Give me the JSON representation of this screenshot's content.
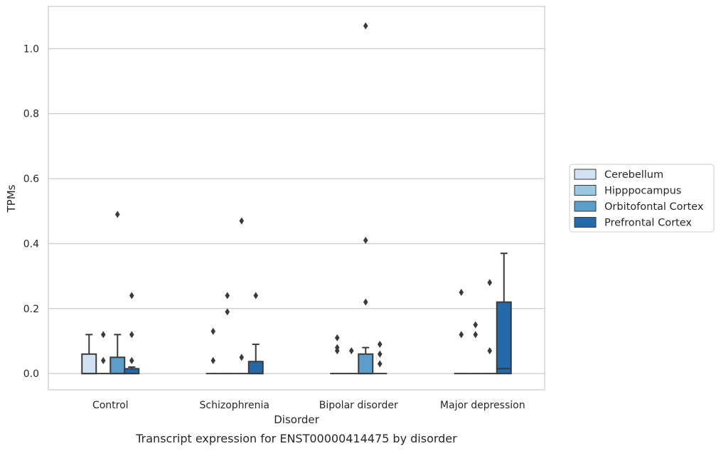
{
  "chart_data": {
    "type": "box",
    "title": "",
    "caption": "Transcript expression for ENST00000414475 by disorder",
    "xlabel": "Disorder",
    "ylabel": "TPMs",
    "ylim": [
      -0.05,
      1.13
    ],
    "yticks": [
      0.0,
      0.2,
      0.4,
      0.6,
      0.8,
      1.0
    ],
    "ytick_labels": [
      "0.0",
      "0.2",
      "0.4",
      "0.6",
      "0.8",
      "1.0"
    ],
    "grid": "horizontal",
    "legend_position": "right",
    "categories": [
      "Control",
      "Schizophrenia",
      "Bipolar disorder",
      "Major depression"
    ],
    "series": [
      {
        "name": "Cerebellum",
        "color": "#d0e1f2",
        "boxes": [
          {
            "q1": 0.0,
            "median": 0.0,
            "q3": 0.06,
            "whisker_low": 0.0,
            "whisker_high": 0.12,
            "outliers": []
          },
          {
            "q1": 0.0,
            "median": 0.0,
            "q3": 0.0,
            "whisker_low": 0.0,
            "whisker_high": 0.0,
            "outliers": [
              0.04,
              0.13
            ]
          },
          {
            "q1": 0.0,
            "median": 0.0,
            "q3": 0.0,
            "whisker_low": 0.0,
            "whisker_high": 0.0,
            "outliers": [
              0.07,
              0.08,
              0.11
            ]
          },
          {
            "q1": 0.0,
            "median": 0.0,
            "q3": 0.0,
            "whisker_low": 0.0,
            "whisker_high": 0.0,
            "outliers": [
              0.12,
              0.25
            ]
          }
        ]
      },
      {
        "name": "Hipppocampus",
        "color": "#9ac8e0",
        "boxes": [
          {
            "q1": 0.0,
            "median": 0.0,
            "q3": 0.0,
            "whisker_low": 0.0,
            "whisker_high": 0.0,
            "outliers": [
              0.04,
              0.12
            ]
          },
          {
            "q1": 0.0,
            "median": 0.0,
            "q3": 0.0,
            "whisker_low": 0.0,
            "whisker_high": 0.0,
            "outliers": [
              0.19,
              0.24
            ]
          },
          {
            "q1": 0.0,
            "median": 0.0,
            "q3": 0.0,
            "whisker_low": 0.0,
            "whisker_high": 0.0,
            "outliers": [
              0.07
            ]
          },
          {
            "q1": 0.0,
            "median": 0.0,
            "q3": 0.0,
            "whisker_low": 0.0,
            "whisker_high": 0.0,
            "outliers": [
              0.12,
              0.15
            ]
          }
        ]
      },
      {
        "name": "Orbitofontal Cortex",
        "color": "#5a9ec9",
        "boxes": [
          {
            "q1": 0.0,
            "median": 0.0,
            "q3": 0.05,
            "whisker_low": 0.0,
            "whisker_high": 0.12,
            "outliers": [
              0.49
            ]
          },
          {
            "q1": 0.0,
            "median": 0.0,
            "q3": 0.0,
            "whisker_low": 0.0,
            "whisker_high": 0.0,
            "outliers": [
              0.05,
              0.47
            ]
          },
          {
            "q1": 0.0,
            "median": 0.0,
            "q3": 0.06,
            "whisker_low": 0.0,
            "whisker_high": 0.08,
            "outliers": [
              0.22,
              0.41,
              1.07
            ]
          },
          {
            "q1": 0.0,
            "median": 0.0,
            "q3": 0.0,
            "whisker_low": 0.0,
            "whisker_high": 0.0,
            "outliers": [
              0.07,
              0.28
            ]
          }
        ]
      },
      {
        "name": "Prefrontal Cortex",
        "color": "#2469a9",
        "boxes": [
          {
            "q1": 0.0,
            "median": 0.0,
            "q3": 0.015,
            "whisker_low": 0.0,
            "whisker_high": 0.02,
            "outliers": [
              0.04,
              0.12,
              0.24
            ]
          },
          {
            "q1": 0.0,
            "median": 0.0,
            "q3": 0.037,
            "whisker_low": 0.0,
            "whisker_high": 0.09,
            "outliers": [
              0.24
            ]
          },
          {
            "q1": 0.0,
            "median": 0.0,
            "q3": 0.0,
            "whisker_low": 0.0,
            "whisker_high": 0.0,
            "outliers": [
              0.03,
              0.06,
              0.09
            ]
          },
          {
            "q1": 0.0,
            "median": 0.015,
            "q3": 0.22,
            "whisker_low": 0.0,
            "whisker_high": 0.37,
            "outliers": []
          }
        ]
      }
    ]
  }
}
